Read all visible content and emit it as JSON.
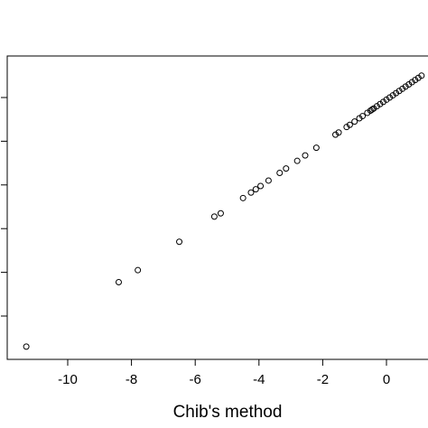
{
  "chart_data": {
    "type": "scatter",
    "title": "",
    "xlabel": "Chib's method",
    "ylabel": "",
    "xlim": [
      -11.6,
      1.2
    ],
    "ylim": [
      -11.6,
      1.2
    ],
    "x_ticks": [
      -10,
      -8,
      -6,
      -4,
      -2,
      0
    ],
    "x_tick_labels": [
      "-10",
      "-8",
      "-6",
      "-4",
      "-2",
      "0"
    ],
    "y_ticks": [
      -10,
      -8,
      -6,
      -4,
      -2,
      0
    ],
    "grid": false,
    "legend": "none",
    "marker": "open-circle",
    "series": [
      {
        "x": [
          -11.3,
          -8.4,
          -7.8,
          -6.5,
          -5.4,
          -5.2,
          -4.5,
          -4.25,
          -4.1,
          -3.95,
          -3.7,
          -3.35,
          -3.15,
          -2.8,
          -2.55,
          -2.2,
          -1.6,
          -1.5,
          -1.25,
          -1.15,
          -1.0,
          -0.85,
          -0.75,
          -0.6,
          -0.5,
          -0.45,
          -0.4,
          -0.3,
          -0.2,
          -0.1,
          0.0,
          0.1,
          0.2,
          0.3,
          0.4,
          0.5,
          0.6,
          0.7,
          0.8,
          0.9,
          1.0,
          1.1
        ],
        "y": [
          -11.4,
          -8.45,
          -7.9,
          -6.6,
          -5.45,
          -5.3,
          -4.6,
          -4.35,
          -4.2,
          -4.05,
          -3.8,
          -3.45,
          -3.25,
          -2.9,
          -2.65,
          -2.3,
          -1.7,
          -1.6,
          -1.35,
          -1.25,
          -1.1,
          -0.95,
          -0.85,
          -0.7,
          -0.6,
          -0.55,
          -0.5,
          -0.4,
          -0.3,
          -0.2,
          -0.1,
          0.0,
          0.1,
          0.2,
          0.3,
          0.4,
          0.5,
          0.6,
          0.7,
          0.8,
          0.9,
          1.0
        ]
      }
    ]
  }
}
